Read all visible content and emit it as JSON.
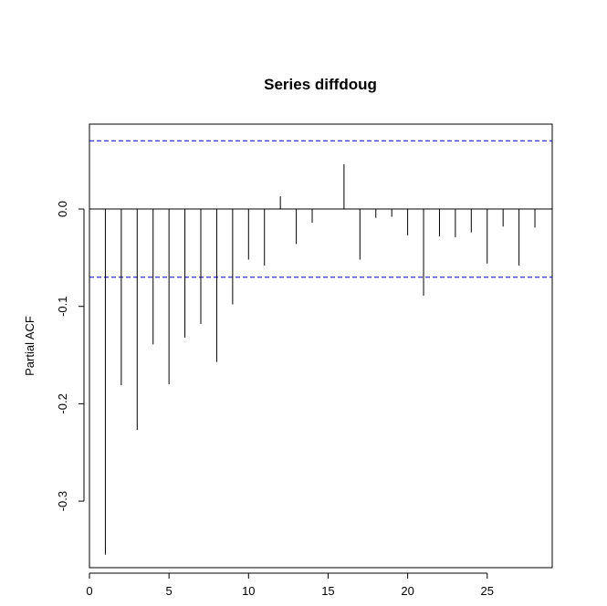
{
  "chart_data": {
    "type": "bar",
    "title": "Series  diffdoug",
    "xlabel": "",
    "ylabel": "Partial ACF",
    "xlim": [
      0,
      29
    ],
    "ylim": [
      -0.37,
      0.09
    ],
    "x_ticks": [
      0,
      5,
      10,
      15,
      20,
      25
    ],
    "x_tick_labels": [
      "0",
      "5",
      "10",
      "15",
      "20",
      "25"
    ],
    "y_ticks": [
      -0.3,
      -0.2,
      -0.1,
      0.0
    ],
    "y_tick_labels": [
      "-0.3",
      "-0.2",
      "-0.1",
      "0.0"
    ],
    "confidence_bound": 0.07,
    "colors": {
      "spikes": "#000000",
      "bounds": "#0000cc",
      "zero_line": "#000000"
    },
    "lags": [
      1,
      2,
      3,
      4,
      5,
      6,
      7,
      8,
      9,
      10,
      11,
      12,
      13,
      14,
      15,
      16,
      17,
      18,
      19,
      20,
      21,
      22,
      23,
      24,
      25,
      26,
      27,
      28
    ],
    "values": [
      -0.355,
      -0.181,
      -0.227,
      -0.139,
      -0.18,
      -0.132,
      -0.118,
      -0.157,
      -0.098,
      -0.052,
      -0.058,
      0.013,
      -0.036,
      -0.014,
      0.0,
      0.046,
      -0.052,
      -0.009,
      -0.008,
      -0.027,
      -0.089,
      -0.028,
      -0.029,
      -0.024,
      -0.056,
      -0.018,
      -0.058,
      -0.019
    ]
  }
}
